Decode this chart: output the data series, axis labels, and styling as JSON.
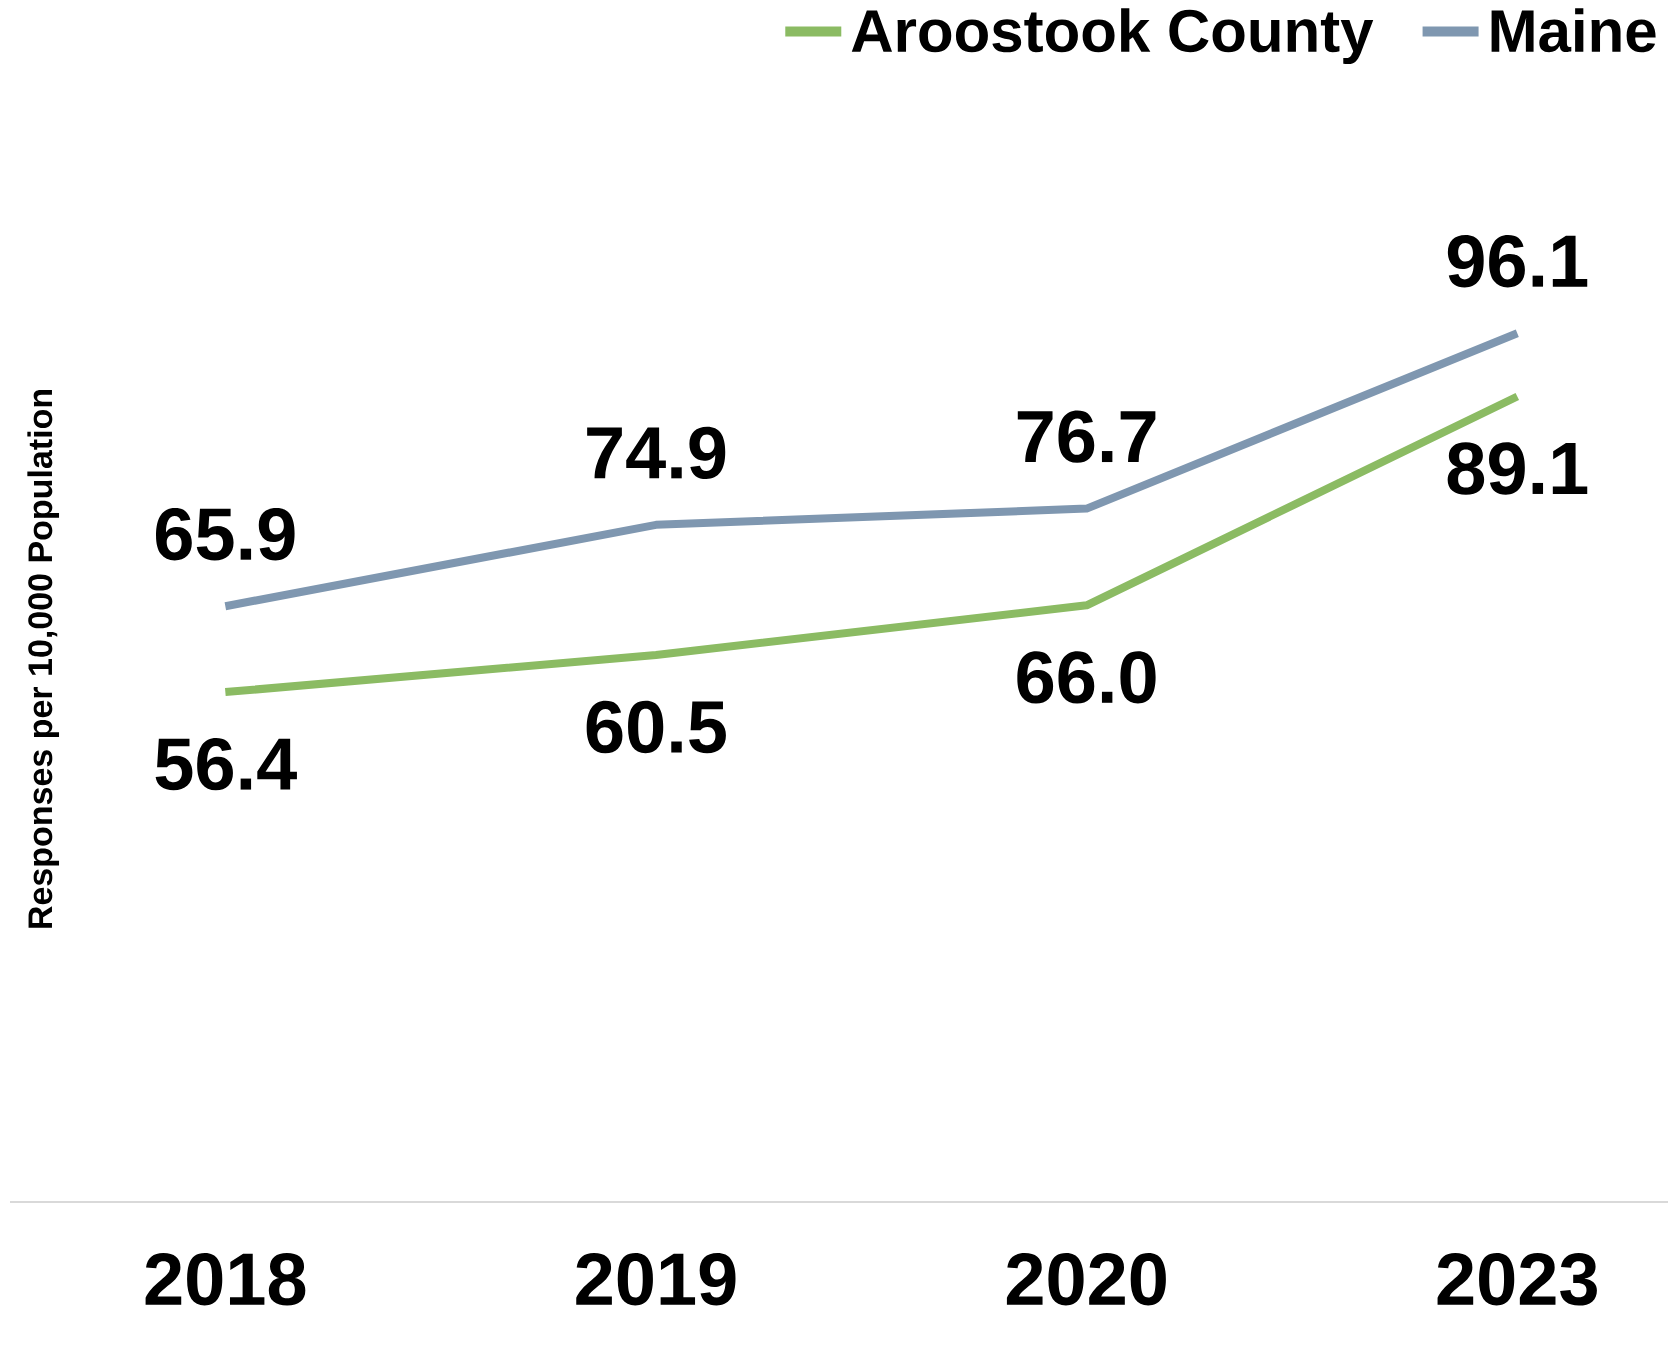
{
  "chart_data": {
    "type": "line",
    "ylabel": "Responses per 10,000 Population",
    "categories": [
      "2018",
      "2019",
      "2020",
      "2023"
    ],
    "series": [
      {
        "name": "Aroostook County",
        "color": "#8bbb63",
        "values": [
          56.4,
          60.5,
          66.0,
          89.1
        ],
        "value_labels": [
          "56.4",
          "60.5",
          "66.0",
          "89.1"
        ]
      },
      {
        "name": "Maine",
        "color": "#7f97b0",
        "values": [
          65.9,
          74.9,
          76.7,
          96.1
        ],
        "value_labels": [
          "65.9",
          "74.9",
          "76.7",
          "96.1"
        ]
      }
    ],
    "tick_labels": "x",
    "legend": "top right",
    "grid": false,
    "marker": "none",
    "line_style": "solid"
  }
}
